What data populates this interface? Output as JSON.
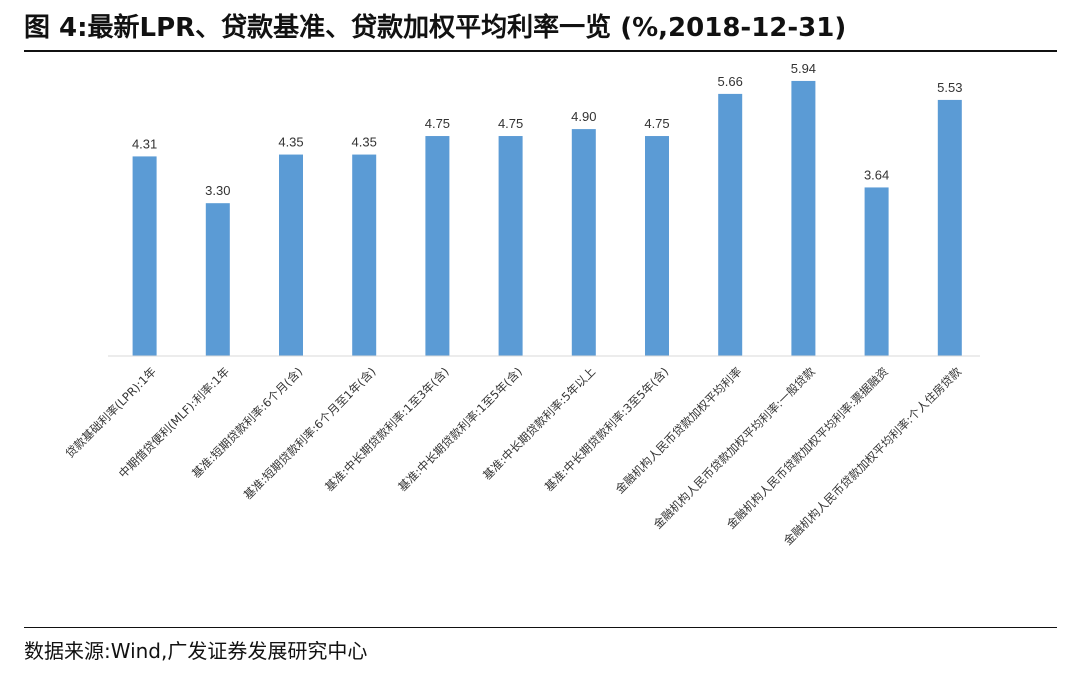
{
  "figure": {
    "title": "图 4:最新LPR、贷款基准、贷款加权平均利率一览 (%,2018-12-31)",
    "source": "数据来源:Wind,广发证券发展研究中心"
  },
  "chart_data": {
    "type": "bar",
    "title": "",
    "xlabel": "",
    "ylabel": "",
    "ylim": [
      0,
      6.5
    ],
    "grid": false,
    "bar_color": "#5b9bd5",
    "categories": [
      "贷款基础利率(LPR):1年",
      "中期借贷便利(MLF):利率:1年",
      "基准:短期贷款利率:6个月(含)",
      "基准:短期贷款利率:6个月至1年(含)",
      "基准:中长期贷款利率:1至3年(含)",
      "基准:中长期贷款利率:1至5年(含)",
      "基准:中长期贷款利率:5年以上",
      "基准:中长期贷款利率:3至5年(含)",
      "金融机构人民币贷款加权平均利率",
      "金融机构人民币贷款加权平均利率:一般贷款",
      "金融机构人民币贷款加权平均利率:票据融资",
      "金融机构人民币贷款加权平均利率:个人住房贷款"
    ],
    "values": [
      4.31,
      3.3,
      4.35,
      4.35,
      4.75,
      4.75,
      4.9,
      4.75,
      5.66,
      5.94,
      3.64,
      5.53
    ],
    "value_labels": [
      "4.31",
      "3.30",
      "4.35",
      "4.35",
      "4.75",
      "4.75",
      "4.90",
      "4.75",
      "5.66",
      "5.94",
      "3.64",
      "5.53"
    ]
  }
}
